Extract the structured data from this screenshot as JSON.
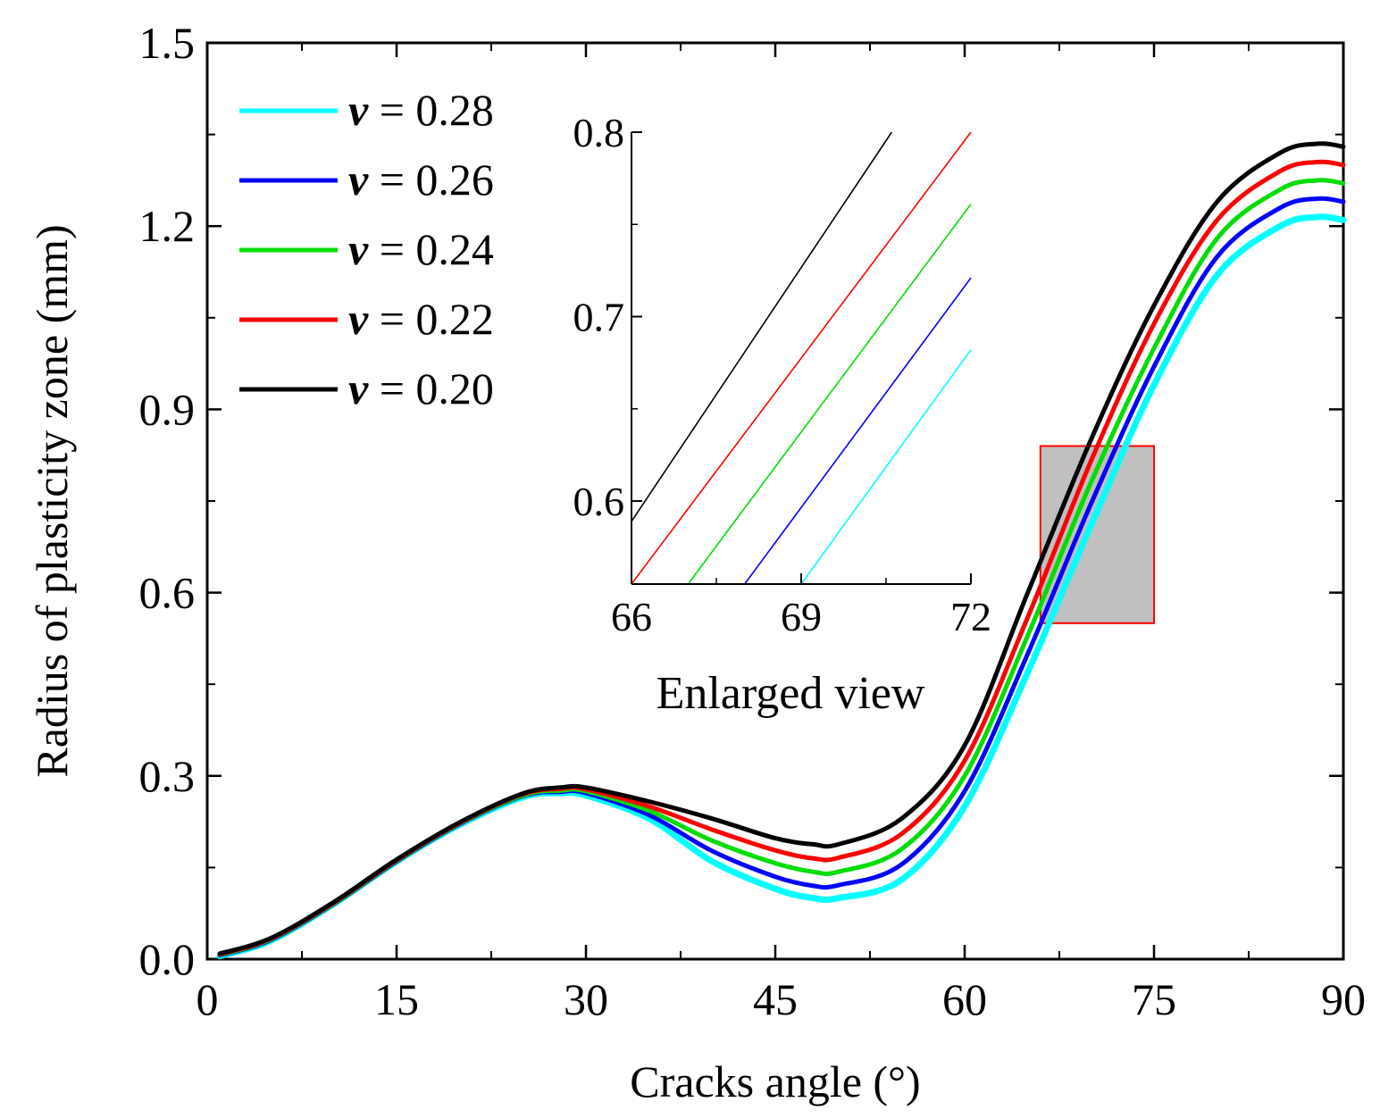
{
  "chart_data": {
    "type": "line",
    "title": "",
    "xlabel": "Cracks angle (°)",
    "ylabel": "Radius of plasticity zone (mm)",
    "xlim": [
      0,
      90
    ],
    "ylim": [
      0,
      1.5
    ],
    "xticks": [
      "0",
      "15",
      "30",
      "45",
      "60",
      "75",
      "90"
    ],
    "yticks": [
      "0.0",
      "0.3",
      "0.6",
      "0.9",
      "1.2",
      "1.5"
    ],
    "legend_position": "top-left",
    "x": [
      1,
      5,
      10,
      15,
      20,
      25,
      28,
      30,
      35,
      40,
      45,
      48,
      50,
      55,
      60,
      65,
      70,
      75,
      80,
      85,
      88,
      90
    ],
    "series": [
      {
        "name": "ν = 0.28",
        "legend_label": "= 0.28",
        "color": "#00ffff",
        "values": [
          0.005,
          0.03,
          0.09,
          0.16,
          0.22,
          0.265,
          0.272,
          0.268,
          0.23,
          0.16,
          0.115,
          0.1,
          0.1,
          0.13,
          0.25,
          0.47,
          0.71,
          0.94,
          1.12,
          1.2,
          1.215,
          1.21
        ]
      },
      {
        "name": "ν = 0.26",
        "legend_label": "= 0.26",
        "color": "#0000ff",
        "values": [
          0.006,
          0.031,
          0.09,
          0.16,
          0.221,
          0.267,
          0.274,
          0.272,
          0.236,
          0.177,
          0.135,
          0.12,
          0.121,
          0.155,
          0.275,
          0.5,
          0.745,
          0.97,
          1.15,
          1.23,
          1.245,
          1.24
        ]
      },
      {
        "name": "ν = 0.24",
        "legend_label": "= 0.24",
        "color": "#00dd00",
        "values": [
          0.007,
          0.032,
          0.091,
          0.161,
          0.222,
          0.268,
          0.276,
          0.275,
          0.243,
          0.194,
          0.157,
          0.143,
          0.143,
          0.18,
          0.3,
          0.53,
          0.78,
          1.0,
          1.18,
          1.26,
          1.275,
          1.27
        ]
      },
      {
        "name": "ν = 0.22",
        "legend_label": "= 0.22",
        "color": "#ff0000",
        "values": [
          0.008,
          0.033,
          0.092,
          0.162,
          0.223,
          0.27,
          0.279,
          0.278,
          0.25,
          0.212,
          0.178,
          0.165,
          0.166,
          0.205,
          0.325,
          0.56,
          0.815,
          1.04,
          1.21,
          1.29,
          1.305,
          1.3
        ]
      },
      {
        "name": "ν = 0.20",
        "legend_label": "= 0.20",
        "color": "#000000",
        "values": [
          0.009,
          0.034,
          0.093,
          0.163,
          0.224,
          0.271,
          0.281,
          0.281,
          0.258,
          0.23,
          0.198,
          0.188,
          0.188,
          0.23,
          0.35,
          0.6,
          0.85,
          1.07,
          1.24,
          1.32,
          1.335,
          1.33
        ]
      }
    ],
    "highlight_box": {
      "x_range": [
        66,
        75
      ],
      "y_range": [
        0.55,
        0.84
      ],
      "fill": "#c0c0c0",
      "stroke": "#ff0000"
    },
    "inset": {
      "caption": "Enlarged view",
      "xlim": [
        66,
        72
      ],
      "ylim": [
        0.555,
        0.8
      ],
      "xticks": [
        "66",
        "69",
        "72"
      ],
      "yticks": [
        "0.6",
        "0.7",
        "0.8"
      ],
      "series": [
        {
          "name": "ν = 0.28",
          "color": "#00ffff",
          "x": [
            69.0,
            72.0
          ],
          "y": [
            0.555,
            0.682
          ]
        },
        {
          "name": "ν = 0.26",
          "color": "#0000ff",
          "x": [
            68.0,
            72.0
          ],
          "y": [
            0.555,
            0.721
          ]
        },
        {
          "name": "ν = 0.24",
          "color": "#00dd00",
          "x": [
            67.0,
            72.0
          ],
          "y": [
            0.555,
            0.761
          ]
        },
        {
          "name": "ν = 0.22",
          "color": "#ff0000",
          "x": [
            66.0,
            72.0
          ],
          "y": [
            0.555,
            0.8
          ]
        },
        {
          "name": "ν = 0.20",
          "color": "#000000",
          "x": [
            66.0,
            70.6
          ],
          "y": [
            0.589,
            0.8
          ]
        }
      ]
    }
  }
}
